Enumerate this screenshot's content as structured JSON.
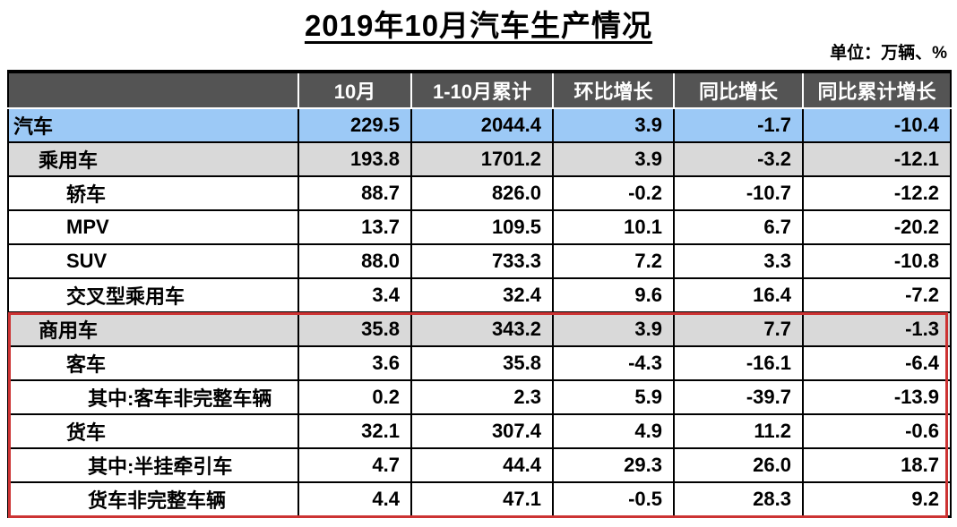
{
  "title": "2019年10月汽车生产情况",
  "unit_label": "单位：万辆、%",
  "chart_data": {
    "type": "table",
    "columns": [
      "",
      "10月",
      "1-10月累计",
      "环比增长",
      "同比增长",
      "同比累计增长"
    ],
    "rows": [
      {
        "label": "汽车",
        "indent": 0,
        "highlight": "blue",
        "values": [
          "229.5",
          "2044.4",
          "3.9",
          "-1.7",
          "-10.4"
        ]
      },
      {
        "label": "乘用车",
        "indent": 1,
        "highlight": "gray",
        "values": [
          "193.8",
          "1701.2",
          "3.9",
          "-3.2",
          "-12.1"
        ]
      },
      {
        "label": "轿车",
        "indent": 2,
        "highlight": "white",
        "values": [
          "88.7",
          "826.0",
          "-0.2",
          "-10.7",
          "-12.2"
        ]
      },
      {
        "label": "MPV",
        "indent": 2,
        "highlight": "white",
        "values": [
          "13.7",
          "109.5",
          "10.1",
          "6.7",
          "-20.2"
        ]
      },
      {
        "label": "SUV",
        "indent": 2,
        "highlight": "white",
        "values": [
          "88.0",
          "733.3",
          "7.2",
          "3.3",
          "-10.8"
        ]
      },
      {
        "label": "交叉型乘用车",
        "indent": 2,
        "highlight": "white",
        "values": [
          "3.4",
          "32.4",
          "9.6",
          "16.4",
          "-7.2"
        ]
      },
      {
        "label": "商用车",
        "indent": 1,
        "highlight": "gray",
        "values": [
          "35.8",
          "343.2",
          "3.9",
          "7.7",
          "-1.3"
        ]
      },
      {
        "label": "客车",
        "indent": 2,
        "highlight": "white",
        "values": [
          "3.6",
          "35.8",
          "-4.3",
          "-16.1",
          "-6.4"
        ]
      },
      {
        "label": "其中:客车非完整车辆",
        "indent": 3,
        "highlight": "white",
        "values": [
          "0.2",
          "2.3",
          "5.9",
          "-39.7",
          "-13.9"
        ]
      },
      {
        "label": "货车",
        "indent": 2,
        "highlight": "white",
        "values": [
          "32.1",
          "307.4",
          "4.9",
          "11.2",
          "-0.6"
        ]
      },
      {
        "label": "其中:半挂牵引车",
        "indent": 3,
        "highlight": "white",
        "values": [
          "4.7",
          "44.4",
          "29.3",
          "26.0",
          "18.7"
        ]
      },
      {
        "label": "货车非完整车辆",
        "indent": 3,
        "highlight": "white",
        "values": [
          "4.4",
          "47.1",
          "-0.5",
          "28.3",
          "9.2"
        ]
      }
    ],
    "red_box_row_range": [
      6,
      11
    ],
    "layout_hints": {
      "header_position": "top",
      "grid": "on",
      "value_alignment": "right"
    },
    "colors": {
      "header_bg": "#545454",
      "header_text": "#FFFFFF",
      "row_highlight_blue": "#9CC9F6",
      "row_highlight_gray": "#D9D9D9",
      "red_box_border": "#CC3333",
      "grid_line": "#000000"
    }
  }
}
